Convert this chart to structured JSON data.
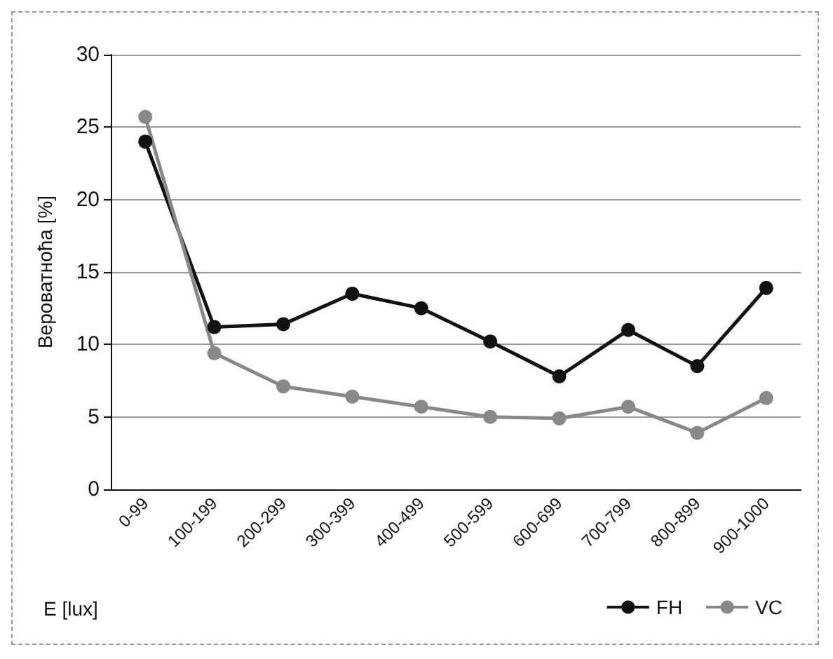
{
  "chart_data": {
    "type": "line",
    "categories": [
      "0-99",
      "100-199",
      "200-299",
      "300-399",
      "400-499",
      "500-599",
      "600-699",
      "700-799",
      "800-899",
      "900-1000"
    ],
    "series": [
      {
        "name": "FH",
        "color": "#111111",
        "values": [
          24.0,
          11.2,
          11.4,
          13.5,
          12.5,
          10.2,
          7.8,
          11.0,
          8.5,
          13.9
        ]
      },
      {
        "name": "VC",
        "color": "#888888",
        "values": [
          25.7,
          9.4,
          7.1,
          6.4,
          5.7,
          5.0,
          4.9,
          5.7,
          3.9,
          6.3
        ]
      }
    ],
    "xlabel": "E [lux]",
    "ylabel": "Вероватноћа [%]",
    "ylim": [
      0,
      30
    ],
    "yticks": [
      0,
      5,
      10,
      15,
      20,
      25,
      30
    ],
    "grid": "y",
    "legend": "bottom right",
    "marker": "circle",
    "line_style": "solid"
  }
}
